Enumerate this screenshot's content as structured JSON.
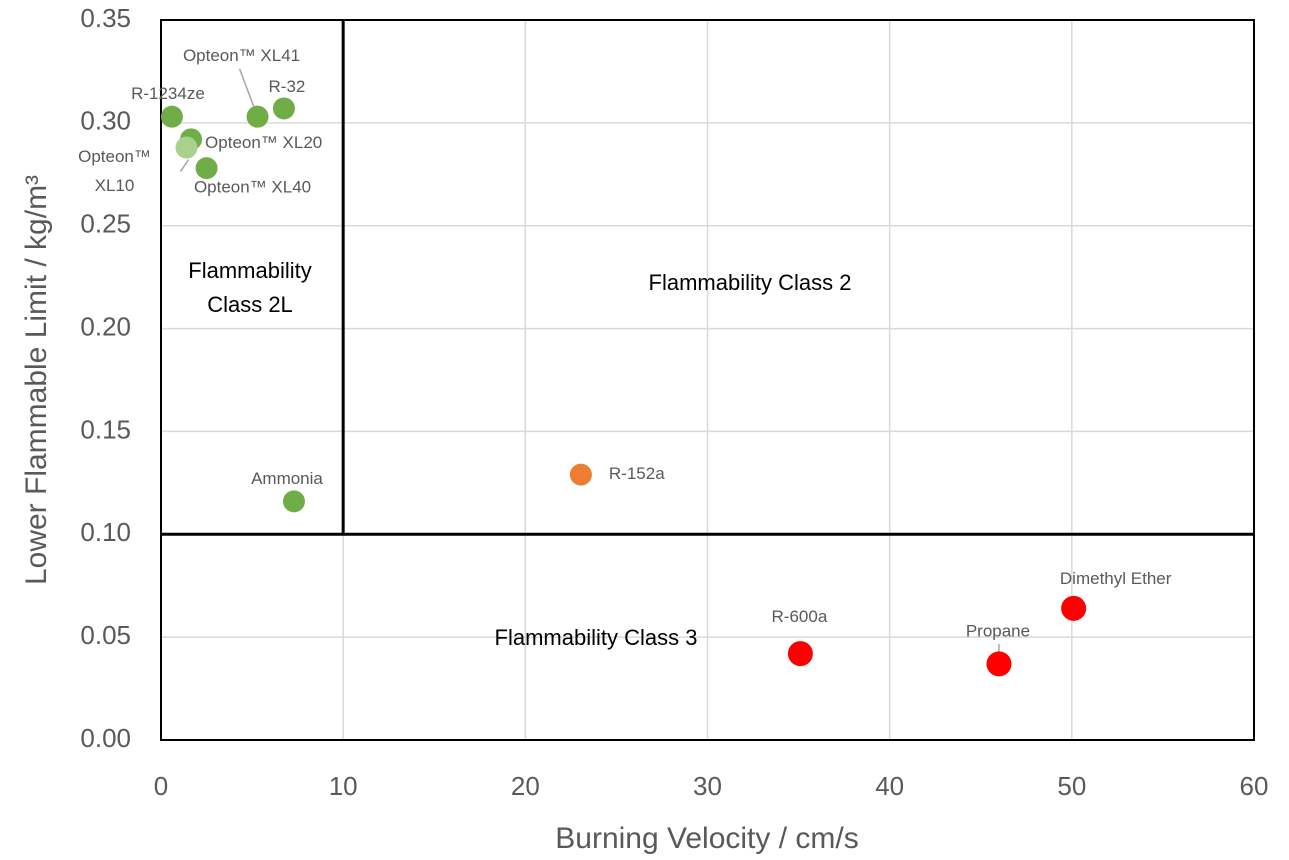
{
  "chart_data": {
    "type": "scatter",
    "x_label": "Burning Velocity / cm/s",
    "y_label": "Lower Flammable Limit / kg/m³",
    "xlim": [
      0,
      60
    ],
    "ylim": [
      0,
      0.35
    ],
    "xticks": [
      0,
      10,
      20,
      30,
      40,
      50,
      60
    ],
    "yticks": [
      {
        "value": 0,
        "label": "0.00"
      },
      {
        "value": 0.05,
        "label": "0.05"
      },
      {
        "value": 0.1,
        "label": "0.10"
      },
      {
        "value": 0.15,
        "label": "0.15"
      },
      {
        "value": 0.2,
        "label": "0.20"
      },
      {
        "value": 0.25,
        "label": "0.25"
      },
      {
        "value": 0.3,
        "label": "0.30"
      },
      {
        "value": 0.35,
        "label": "0.35"
      }
    ],
    "grid": true,
    "thresholds": {
      "x": 10,
      "y": 0.1
    },
    "regions": [
      {
        "label": [
          "Flammability",
          "Class 2L"
        ]
      },
      {
        "label": [
          "Flammability Class 2"
        ]
      },
      {
        "label": [
          "Flammability Class 3"
        ]
      }
    ],
    "points": [
      {
        "label": "R-1234ze",
        "x": 0.6,
        "y": 0.303,
        "color": "#70ad47"
      },
      {
        "label": "Opteon™ XL41",
        "x": 5.3,
        "y": 0.303,
        "color": "#70ad47"
      },
      {
        "label": "R-32",
        "x": 6.75,
        "y": 0.307,
        "color": "#70ad47"
      },
      {
        "label": "Opteon™ XL20",
        "x": 1.65,
        "y": 0.292,
        "color": "#70ad47"
      },
      {
        "label": [
          "Opteon™",
          "XL10"
        ],
        "x": 1.4,
        "y": 0.288,
        "color": "#a9d18e"
      },
      {
        "label": "Opteon™ XL40",
        "x": 2.5,
        "y": 0.278,
        "color": "#70ad47"
      },
      {
        "label": "Ammonia",
        "x": 7.3,
        "y": 0.116,
        "color": "#70ad47"
      },
      {
        "label": "R-152a",
        "x": 23.05,
        "y": 0.129,
        "color": "#ed7d31"
      },
      {
        "label": "R-600a",
        "x": 35.1,
        "y": 0.042,
        "color": "#ff0000"
      },
      {
        "label": "Propane",
        "x": 46.0,
        "y": 0.037,
        "color": "#ff0000"
      },
      {
        "label": "Dimethyl Ether",
        "x": 50.1,
        "y": 0.064,
        "color": "#ff0000"
      }
    ]
  }
}
